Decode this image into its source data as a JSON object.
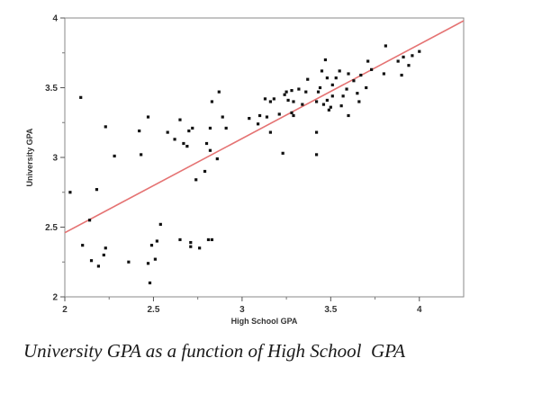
{
  "chart_data": {
    "type": "scatter",
    "title": "",
    "xlabel": "High School GPA",
    "ylabel": "University GPA",
    "xlim": [
      2,
      4.25
    ],
    "ylim": [
      2,
      4
    ],
    "xticks": [
      "2",
      "2.5",
      "3",
      "3.5",
      "4"
    ],
    "yticks": [
      "2",
      "2.5",
      "3",
      "3.5",
      "4"
    ],
    "grid": false,
    "point_color": "#111111",
    "line_color": "#e57373",
    "points": [
      [
        2.03,
        2.75
      ],
      [
        2.09,
        3.43
      ],
      [
        2.1,
        2.37
      ],
      [
        2.14,
        2.55
      ],
      [
        2.15,
        2.26
      ],
      [
        2.18,
        2.77
      ],
      [
        2.19,
        2.22
      ],
      [
        2.22,
        2.3
      ],
      [
        2.23,
        3.22
      ],
      [
        2.23,
        2.35
      ],
      [
        2.28,
        3.01
      ],
      [
        2.36,
        2.25
      ],
      [
        2.42,
        3.19
      ],
      [
        2.43,
        3.02
      ],
      [
        2.47,
        3.29
      ],
      [
        2.47,
        2.24
      ],
      [
        2.48,
        2.1
      ],
      [
        2.49,
        2.37
      ],
      [
        2.51,
        2.27
      ],
      [
        2.52,
        2.4
      ],
      [
        2.54,
        2.52
      ],
      [
        2.58,
        3.18
      ],
      [
        2.62,
        3.13
      ],
      [
        2.65,
        3.27
      ],
      [
        2.65,
        2.41
      ],
      [
        2.67,
        3.1
      ],
      [
        2.69,
        3.08
      ],
      [
        2.7,
        3.19
      ],
      [
        2.71,
        2.39
      ],
      [
        2.71,
        2.36
      ],
      [
        2.72,
        3.21
      ],
      [
        2.74,
        2.84
      ],
      [
        2.76,
        2.35
      ],
      [
        2.79,
        2.9
      ],
      [
        2.8,
        3.1
      ],
      [
        2.81,
        2.41
      ],
      [
        2.82,
        3.05
      ],
      [
        2.82,
        3.21
      ],
      [
        2.83,
        3.4
      ],
      [
        2.83,
        2.41
      ],
      [
        2.86,
        2.99
      ],
      [
        2.87,
        3.47
      ],
      [
        2.89,
        3.29
      ],
      [
        2.91,
        3.21
      ],
      [
        3.04,
        3.28
      ],
      [
        3.09,
        3.24
      ],
      [
        3.1,
        3.3
      ],
      [
        3.13,
        3.42
      ],
      [
        3.14,
        3.29
      ],
      [
        3.16,
        3.4
      ],
      [
        3.16,
        3.18
      ],
      [
        3.18,
        3.42
      ],
      [
        3.21,
        3.31
      ],
      [
        3.23,
        3.03
      ],
      [
        3.24,
        3.45
      ],
      [
        3.25,
        3.47
      ],
      [
        3.26,
        3.41
      ],
      [
        3.28,
        3.32
      ],
      [
        3.28,
        3.48
      ],
      [
        3.29,
        3.4
      ],
      [
        3.29,
        3.3
      ],
      [
        3.32,
        3.49
      ],
      [
        3.34,
        3.38
      ],
      [
        3.36,
        3.47
      ],
      [
        3.37,
        3.56
      ],
      [
        3.42,
        3.4
      ],
      [
        3.42,
        3.18
      ],
      [
        3.42,
        3.02
      ],
      [
        3.43,
        3.47
      ],
      [
        3.44,
        3.5
      ],
      [
        3.45,
        3.62
      ],
      [
        3.46,
        3.38
      ],
      [
        3.47,
        3.7
      ],
      [
        3.48,
        3.41
      ],
      [
        3.48,
        3.57
      ],
      [
        3.49,
        3.34
      ],
      [
        3.5,
        3.36
      ],
      [
        3.51,
        3.52
      ],
      [
        3.51,
        3.44
      ],
      [
        3.53,
        3.57
      ],
      [
        3.55,
        3.62
      ],
      [
        3.56,
        3.37
      ],
      [
        3.57,
        3.44
      ],
      [
        3.59,
        3.49
      ],
      [
        3.6,
        3.3
      ],
      [
        3.6,
        3.6
      ],
      [
        3.63,
        3.55
      ],
      [
        3.65,
        3.46
      ],
      [
        3.66,
        3.4
      ],
      [
        3.67,
        3.59
      ],
      [
        3.7,
        3.5
      ],
      [
        3.71,
        3.69
      ],
      [
        3.73,
        3.63
      ],
      [
        3.8,
        3.6
      ],
      [
        3.81,
        3.8
      ],
      [
        3.88,
        3.69
      ],
      [
        3.9,
        3.59
      ],
      [
        3.91,
        3.72
      ],
      [
        3.94,
        3.66
      ],
      [
        3.96,
        3.73
      ],
      [
        4.0,
        3.76
      ]
    ],
    "regression_line": {
      "x": [
        2,
        4.25
      ],
      "y": [
        2.46,
        3.98
      ]
    }
  },
  "caption": "University GPA as a function of High School  GPA"
}
